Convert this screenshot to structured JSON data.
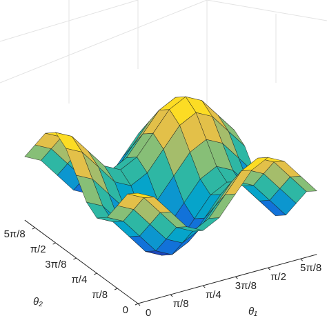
{
  "chart_data": {
    "type": "surface",
    "xlabel": "θ₁",
    "ylabel": "θ₂",
    "x": [
      0,
      0.196,
      0.393,
      0.589,
      0.785,
      0.982,
      1.178,
      1.374,
      1.571,
      1.767,
      1.963,
      2.16
    ],
    "y": [
      0,
      0.196,
      0.393,
      0.589,
      0.785,
      0.982,
      1.178,
      1.374,
      1.571,
      1.767,
      1.963,
      2.16
    ],
    "z": [
      [
        2,
        1.7,
        1,
        0.3,
        0,
        0.3,
        1,
        1.7,
        2,
        1.7,
        1,
        0.3
      ],
      [
        1.7,
        1.4,
        0.7,
        0,
        -0.3,
        0,
        0.7,
        1.4,
        1.7,
        1.4,
        0.7,
        0
      ],
      [
        1,
        0.7,
        0,
        -0.7,
        -1,
        -0.7,
        0,
        0.7,
        1,
        0.7,
        0,
        -0.7
      ],
      [
        0.3,
        0,
        -0.7,
        -1.4,
        -1.7,
        -1.4,
        -0.7,
        0,
        0.3,
        0,
        -0.7,
        -1.4
      ],
      [
        0,
        -0.3,
        -1,
        -1.7,
        -2,
        -1.7,
        -1,
        -0.3,
        0,
        -0.3,
        -1,
        -1.7
      ],
      [
        0.3,
        0,
        -0.7,
        -1.4,
        -1.7,
        -1.4,
        -0.7,
        0,
        0.3,
        0,
        -0.7,
        -1.4
      ],
      [
        1,
        0.7,
        0,
        -0.7,
        -1,
        -0.7,
        0,
        0.7,
        1,
        0.7,
        0,
        -0.7
      ],
      [
        1.7,
        1.4,
        0.7,
        0,
        -0.3,
        0,
        0.7,
        1.4,
        1.7,
        1.4,
        0.7,
        0
      ],
      [
        2,
        1.7,
        1,
        0.3,
        0,
        0.3,
        1,
        1.7,
        2,
        1.7,
        1,
        0.3
      ],
      [
        1.7,
        1.4,
        0.7,
        0,
        -0.3,
        0,
        0.7,
        1.4,
        1.7,
        1.4,
        0.7,
        0
      ],
      [
        1,
        0.7,
        0,
        -0.7,
        -1,
        -0.7,
        0,
        0.7,
        1,
        0.7,
        0,
        -0.7
      ],
      [
        0.3,
        0,
        -0.7,
        -1.4,
        -1.7,
        -1.4,
        -0.7,
        0,
        0.3,
        0,
        -0.7,
        -1.4
      ]
    ],
    "zlim": [
      -2,
      2
    ],
    "xticks": [
      0,
      {
        "value": 0.3927,
        "label": "π/8"
      },
      {
        "value": 0.7854,
        "label": "π/4"
      },
      {
        "value": 1.1781,
        "label": "3π/8"
      },
      {
        "value": 1.5708,
        "label": "π/2"
      },
      {
        "value": 1.9635,
        "label": "5π/8"
      }
    ],
    "yticks": [
      0,
      {
        "value": 0.3927,
        "label": "π/8"
      },
      {
        "value": 0.7854,
        "label": "π/4"
      },
      {
        "value": 1.1781,
        "label": "3π/8"
      },
      {
        "value": 1.5708,
        "label": "π/2"
      },
      {
        "value": 1.9635,
        "label": "5π/8"
      }
    ],
    "colormap": [
      "#352a87",
      "#0f5cdd",
      "#1481d6",
      "#06a4ca",
      "#2eb7a4",
      "#87bf77",
      "#d1bb59",
      "#fec832",
      "#f9fb0e"
    ]
  }
}
